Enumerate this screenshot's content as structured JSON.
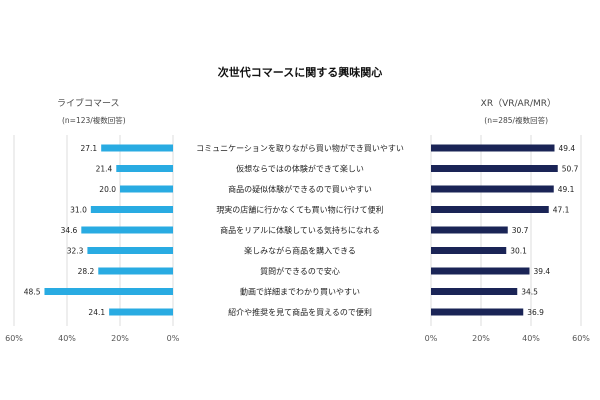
{
  "chart_data": {
    "type": "bar",
    "title": "次世代コマースに関する興味関心",
    "categories": [
      "コミュニケーションを取りながら買い物ができ買いやすい",
      "仮想ならではの体験ができて楽しい",
      "商品の疑似体験ができるので買いやすい",
      "現実の店舗に行かなくても買い物に行けて便利",
      "商品をリアルに体験している気持ちになれる",
      "楽しみながら商品を購入できる",
      "質問ができるので安心",
      "動画で詳細までわかり買いやすい",
      "紹介や推奨を見て商品を買えるので便利"
    ],
    "series": [
      {
        "name": "ライブコマース",
        "note": "(n=123/複数回答)",
        "values": [
          27.1,
          21.4,
          20.0,
          31.0,
          34.6,
          32.3,
          28.2,
          48.5,
          24.1
        ],
        "color": "#29abe2"
      },
      {
        "name": "XR（VR/AR/MR）",
        "note": "(n=285/複数回答)",
        "values": [
          49.4,
          50.7,
          49.1,
          47.1,
          30.7,
          30.1,
          39.4,
          34.5,
          36.9
        ],
        "color": "#1a2456"
      }
    ],
    "value_labels": {
      "left": [
        "27.1",
        "21.4",
        "20.0",
        "31.0",
        "34.6",
        "32.3",
        "28.2",
        "48.5",
        "24.1"
      ],
      "right": [
        "49.4",
        "50.7",
        "49.1",
        "47.1",
        "30.7",
        "30.1",
        "39.4",
        "34.5",
        "36.9"
      ]
    },
    "axis_ticks": {
      "left": [
        "60%",
        "40%",
        "20%",
        "0%"
      ],
      "right": [
        "0%",
        "20%",
        "40%",
        "60%"
      ]
    },
    "xlim": [
      0,
      60
    ],
    "grid": true,
    "legend": "top-left / top-right headers"
  }
}
